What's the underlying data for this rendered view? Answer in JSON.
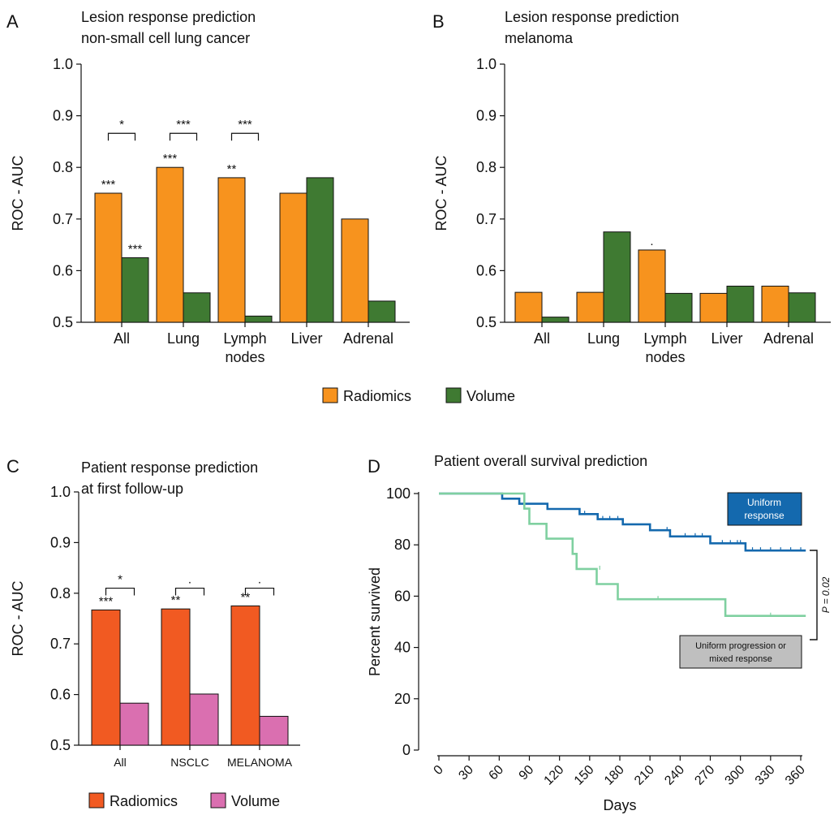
{
  "colors": {
    "radiomics_orange": "#F7931E",
    "volume_green": "#3F7A32",
    "radiomics_red": "#F15A22",
    "volume_pink": "#DA6FB0",
    "uniform_response_blue": "#1469AE",
    "progression_green": "#7FD0A0",
    "label_box_gray": "#BFBFBF"
  },
  "legends": {
    "top": [
      {
        "label": "Radiomics",
        "color": "#F7931E"
      },
      {
        "label": "Volume",
        "color": "#3F7A32"
      }
    ],
    "bottom": [
      {
        "label": "Radiomics",
        "color": "#F15A22"
      },
      {
        "label": "Volume",
        "color": "#DA6FB0"
      }
    ]
  },
  "chart_data": [
    {
      "panel": "A",
      "type": "bar",
      "title": "Lesion response prediction",
      "subtitle": "non-small cell lung cancer",
      "ylabel": "ROC - AUC",
      "xlabel": "",
      "ylim": [
        0.5,
        1.0
      ],
      "yticks": [
        "0.5",
        "0.6",
        "0.7",
        "0.8",
        "0.9",
        "1.0"
      ],
      "categories": [
        "All",
        "Lung",
        "Lymph nodes",
        "Liver",
        "Adrenal"
      ],
      "category_lines": [
        [
          "All"
        ],
        [
          "Lung"
        ],
        [
          "Lymph",
          "nodes"
        ],
        [
          "Liver"
        ],
        [
          "Adrenal"
        ]
      ],
      "series": [
        {
          "name": "Radiomics",
          "color": "#F7931E",
          "values": [
            0.75,
            0.8,
            0.78,
            0.75,
            0.7
          ],
          "labels": [
            "***",
            "***",
            "**",
            "",
            ""
          ]
        },
        {
          "name": "Volume",
          "color": "#3F7A32",
          "values": [
            0.625,
            0.557,
            0.512,
            0.78,
            0.541
          ],
          "labels": [
            "***",
            "",
            "",
            "",
            ""
          ]
        }
      ],
      "comparisons": [
        {
          "category": 0,
          "label": "*",
          "y": 0.866
        },
        {
          "category": 1,
          "label": "***",
          "y": 0.866
        },
        {
          "category": 2,
          "label": "***",
          "y": 0.866
        }
      ]
    },
    {
      "panel": "B",
      "type": "bar",
      "title": "Lesion response prediction",
      "subtitle": "melanoma",
      "ylabel": "ROC - AUC",
      "xlabel": "",
      "ylim": [
        0.5,
        1.0
      ],
      "yticks": [
        "0.5",
        "0.6",
        "0.7",
        "0.8",
        "0.9",
        "1.0"
      ],
      "categories": [
        "All",
        "Lung",
        "Lymph nodes",
        "Liver",
        "Adrenal"
      ],
      "category_lines": [
        [
          "All"
        ],
        [
          "Lung"
        ],
        [
          "Lymph",
          "nodes"
        ],
        [
          "Liver"
        ],
        [
          "Adrenal"
        ]
      ],
      "series": [
        {
          "name": "Radiomics",
          "color": "#F7931E",
          "values": [
            0.558,
            0.558,
            0.64,
            0.556,
            0.57
          ],
          "labels": [
            "",
            "",
            ".",
            "",
            ""
          ]
        },
        {
          "name": "Volume",
          "color": "#3F7A32",
          "values": [
            0.51,
            0.675,
            0.556,
            0.57,
            0.557
          ],
          "labels": [
            "",
            "",
            "",
            "",
            ""
          ]
        }
      ],
      "comparisons": []
    },
    {
      "panel": "C",
      "type": "bar",
      "title": "Patient response prediction",
      "subtitle": "at first follow-up",
      "ylabel": "ROC - AUC",
      "xlabel": "",
      "ylim": [
        0.5,
        1.0
      ],
      "yticks": [
        "0.5",
        "0.6",
        "0.7",
        "0.8",
        "0.9",
        "1.0"
      ],
      "categories": [
        "All",
        "NSCLC",
        "MELANOMA"
      ],
      "category_lines": [
        [
          "All"
        ],
        [
          "NSCLC"
        ],
        [
          "MELANOMA"
        ]
      ],
      "series": [
        {
          "name": "Radiomics",
          "color": "#F15A22",
          "values": [
            0.767,
            0.769,
            0.775
          ],
          "labels": [
            "***",
            "**",
            "**"
          ]
        },
        {
          "name": "Volume",
          "color": "#DA6FB0",
          "values": [
            0.583,
            0.601,
            0.557
          ],
          "labels": [
            "",
            "",
            ""
          ]
        }
      ],
      "comparisons": [
        {
          "category": 0,
          "label": "*",
          "y": 0.81
        },
        {
          "category": 1,
          "label": ".",
          "y": 0.81
        },
        {
          "category": 2,
          "label": ".",
          "y": 0.81
        }
      ]
    },
    {
      "panel": "D",
      "type": "line",
      "title": "Patient overall survival prediction",
      "xlabel": "Days",
      "ylabel": "Percent survived",
      "xlim": [
        0,
        360
      ],
      "ylim": [
        0,
        100
      ],
      "xticks": [
        0,
        30,
        60,
        90,
        120,
        150,
        180,
        210,
        240,
        270,
        300,
        330,
        360
      ],
      "yticks": [
        0,
        20,
        40,
        60,
        80,
        100
      ],
      "series": [
        {
          "name": "Uniform response",
          "color": "#1469AE",
          "steps": [
            [
              0,
              100
            ],
            [
              63,
              100
            ],
            [
              63,
              98
            ],
            [
              80,
              98
            ],
            [
              80,
              96
            ],
            [
              108,
              96
            ],
            [
              108,
              94
            ],
            [
              140,
              94
            ],
            [
              140,
              92
            ],
            [
              158,
              92
            ],
            [
              158,
              90
            ],
            [
              183,
              90
            ],
            [
              183,
              88
            ],
            [
              210,
              88
            ],
            [
              210,
              85.7
            ],
            [
              230,
              85.7
            ],
            [
              230,
              83.3
            ],
            [
              270,
              83.3
            ],
            [
              270,
              80.6
            ],
            [
              305,
              80.6
            ],
            [
              305,
              77.8
            ],
            [
              365,
              77.8
            ]
          ],
          "censors": [
            [
              145,
              92
            ],
            [
              163,
              90
            ],
            [
              170,
              90
            ],
            [
              178,
              90
            ],
            [
              227,
              85.7
            ],
            [
              245,
              83.3
            ],
            [
              255,
              83.3
            ],
            [
              262,
              83.3
            ],
            [
              282,
              80.6
            ],
            [
              290,
              80.6
            ],
            [
              297,
              80.6
            ],
            [
              300,
              80.6
            ],
            [
              312,
              77.8
            ],
            [
              320,
              77.8
            ],
            [
              330,
              77.8
            ],
            [
              340,
              77.8
            ],
            [
              350,
              77.8
            ],
            [
              360,
              77.8
            ]
          ]
        },
        {
          "name": "Uniform progression or mixed response",
          "color": "#7FD0A0",
          "steps": [
            [
              0,
              100
            ],
            [
              85,
              100
            ],
            [
              85,
              94.1
            ],
            [
              90,
              94.1
            ],
            [
              90,
              88.2
            ],
            [
              107,
              88.2
            ],
            [
              107,
              82.4
            ],
            [
              133,
              82.4
            ],
            [
              133,
              76.5
            ],
            [
              137,
              76.5
            ],
            [
              137,
              70.6
            ],
            [
              157,
              70.6
            ],
            [
              157,
              64.7
            ],
            [
              178,
              64.7
            ],
            [
              178,
              58.8
            ],
            [
              285,
              58.8
            ],
            [
              285,
              52.3
            ],
            [
              365,
              52.3
            ]
          ],
          "censors": [
            [
              160,
              70.6
            ],
            [
              218,
              58.8
            ],
            [
              330,
              52.3
            ]
          ]
        }
      ],
      "labels": {
        "uniform_response": [
          "Uniform",
          "response"
        ],
        "progression": [
          "Uniform progression or",
          "mixed response"
        ]
      },
      "pvalue": "P = 0.02"
    }
  ]
}
